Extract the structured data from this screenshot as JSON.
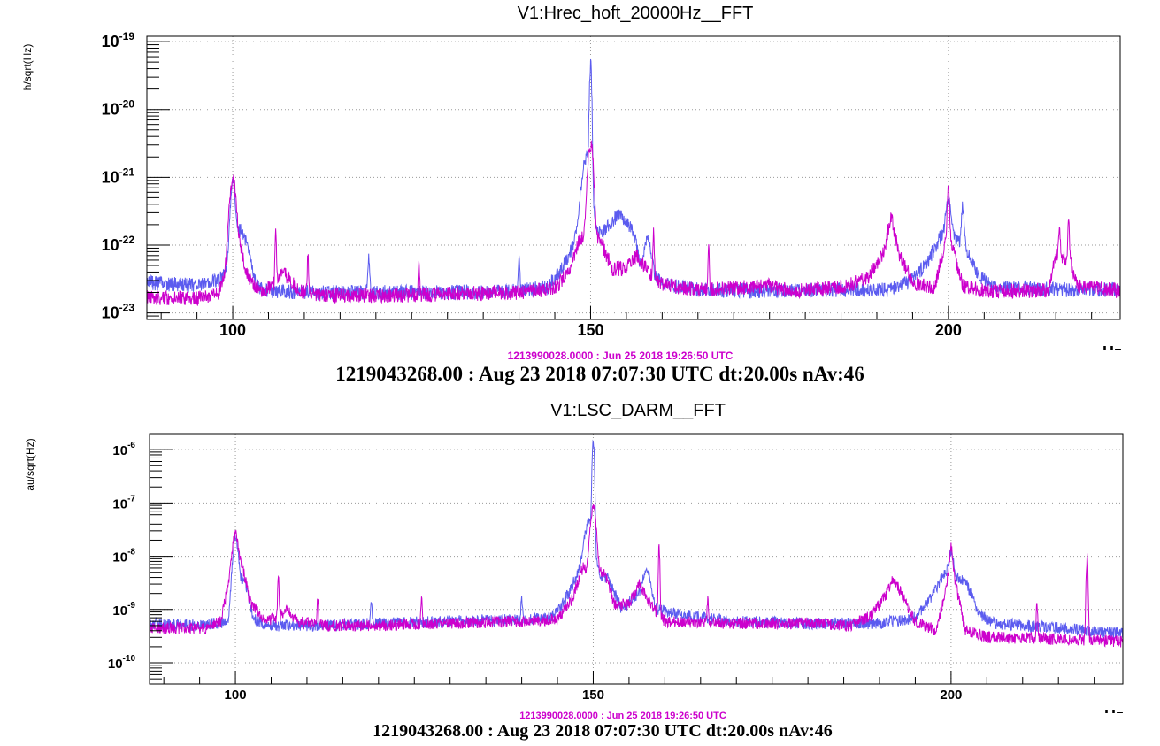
{
  "colors": {
    "reference_trace": "#cc00cc",
    "current_trace": "#5b5bef",
    "frame": "#000000",
    "grid": "#9a9a9a"
  },
  "chart_data": [
    {
      "type": "line",
      "title": "V1:Hrec_hoft_20000Hz__FFT",
      "ylabel": "h/sqrt(Hz)",
      "xlabel": "Hz",
      "x_scale": "linear",
      "y_scale": "log",
      "xlim": [
        88,
        224
      ],
      "ylim": [
        8e-24,
        1.2e-19
      ],
      "x_ticks": [
        100,
        150,
        200
      ],
      "y_ticks": [
        1e-23,
        1e-22,
        1e-21,
        1e-20,
        1e-19
      ],
      "y_tick_labels": [
        {
          "base": "10",
          "exp": "-23"
        },
        {
          "base": "10",
          "exp": "-22"
        },
        {
          "base": "10",
          "exp": "-21"
        },
        {
          "base": "10",
          "exp": "-20"
        },
        {
          "base": "10",
          "exp": "-19"
        }
      ],
      "grid": true,
      "reference_label": "1213990028.0000 : Jun 25 2018 19:26:50 UTC",
      "footer": "1219043268.00 : Aug 23 2018 07:07:30 UTC dt:20.00s nAv:46",
      "series": [
        {
          "color": "#5b5bef",
          "base_points": [
            [
              88,
              2.8e-23
            ],
            [
              95,
              2.5e-23
            ],
            [
              99,
              3.2e-23
            ],
            [
              102,
              2.6e-23
            ],
            [
              105,
              2.1e-23
            ],
            [
              110,
              2e-23
            ],
            [
              120,
              2e-23
            ],
            [
              130,
              2e-23
            ],
            [
              140,
              2.1e-23
            ],
            [
              144,
              2.4e-23
            ],
            [
              146,
              4.5e-23
            ],
            [
              148,
              1.2e-22
            ],
            [
              152,
              1.6e-22
            ],
            [
              154,
              3e-22
            ],
            [
              156,
              1.5e-22
            ],
            [
              157,
              5e-23
            ],
            [
              160,
              2.8e-23
            ],
            [
              165,
              2.2e-23
            ],
            [
              175,
              2.1e-23
            ],
            [
              185,
              2.2e-23
            ],
            [
              192,
              2.2e-23
            ],
            [
              195,
              3e-23
            ],
            [
              197,
              5.5e-23
            ],
            [
              199,
              1.4e-22
            ],
            [
              202,
              1.1e-22
            ],
            [
              204,
              4e-23
            ],
            [
              206,
              2.4e-23
            ],
            [
              215,
              2.2e-23
            ],
            [
              224,
              2.2e-23
            ]
          ],
          "peaks": [
            [
              100,
              8e-22,
              0.25
            ],
            [
              101,
              1.4e-22,
              0.9
            ],
            [
              150,
              4.5e-20,
              0.12
            ],
            [
              149.4,
              1.8e-21,
              0.5
            ],
            [
              119,
              4.5e-23,
              0.1
            ],
            [
              140,
              4.2e-23,
              0.1
            ],
            [
              158,
              8e-23,
              0.4
            ],
            [
              200,
              3.5e-22,
              0.3
            ],
            [
              202,
              2.6e-22,
              0.15
            ]
          ]
        },
        {
          "color": "#cc00cc",
          "base_points": [
            [
              88,
              1.7e-23
            ],
            [
              95,
              1.6e-23
            ],
            [
              98,
              2e-23
            ],
            [
              99,
              4e-23
            ],
            [
              101,
              1e-22
            ],
            [
              102,
              3.5e-23
            ],
            [
              104,
              2e-23
            ],
            [
              106,
              2.8e-23
            ],
            [
              107,
              4.2e-23
            ],
            [
              109,
              2.2e-23
            ],
            [
              112,
              1.8e-23
            ],
            [
              120,
              1.8e-23
            ],
            [
              130,
              1.9e-23
            ],
            [
              140,
              2e-23
            ],
            [
              145,
              2.3e-23
            ],
            [
              147,
              4e-23
            ],
            [
              148.5,
              1.3e-22
            ],
            [
              151.5,
              1.1e-22
            ],
            [
              153,
              4.5e-23
            ],
            [
              155,
              4.5e-23
            ],
            [
              156.5,
              7e-23
            ],
            [
              158,
              4e-23
            ],
            [
              160,
              2.6e-23
            ],
            [
              165,
              2.2e-23
            ],
            [
              175,
              2.5e-23
            ],
            [
              178,
              2.1e-23
            ],
            [
              186,
              2.5e-23
            ],
            [
              189,
              3.5e-23
            ],
            [
              191,
              8e-23
            ],
            [
              192,
              2.8e-22
            ],
            [
              193,
              8e-23
            ],
            [
              195,
              2.8e-23
            ],
            [
              198,
              2.3e-23
            ],
            [
              200,
              1.6e-22
            ],
            [
              202,
              2.5e-23
            ],
            [
              205,
              2.1e-23
            ],
            [
              210,
              2.1e-23
            ],
            [
              214,
              2.2e-23
            ],
            [
              215,
              7e-23
            ],
            [
              217,
              6e-23
            ],
            [
              218,
              2.5e-23
            ],
            [
              224,
              2.1e-23
            ]
          ],
          "peaks": [
            [
              100,
              9e-22,
              0.35
            ],
            [
              150,
              3e-21,
              0.3
            ],
            [
              106,
              1.3e-22,
              0.08
            ],
            [
              110.5,
              5e-23,
              0.08
            ],
            [
              126,
              3.5e-23,
              0.08
            ],
            [
              158.8,
              1.3e-22,
              0.08
            ],
            [
              166.5,
              7e-23,
              0.08
            ],
            [
              200,
              6e-22,
              0.12
            ],
            [
              215.5,
              1e-22,
              0.1
            ],
            [
              216.8,
              2.1e-22,
              0.08
            ]
          ]
        }
      ]
    },
    {
      "type": "line",
      "title": "V1:LSC_DARM__FFT",
      "ylabel": "au/sqrt(Hz)",
      "xlabel": "Hz",
      "x_scale": "linear",
      "y_scale": "log",
      "xlim": [
        88,
        224
      ],
      "ylim": [
        4e-11,
        2e-06
      ],
      "x_ticks": [
        100,
        150,
        200
      ],
      "y_ticks": [
        1e-10,
        1e-09,
        1e-08,
        1e-07,
        1e-06
      ],
      "y_tick_labels": [
        {
          "base": "10",
          "exp": "-10"
        },
        {
          "base": "10",
          "exp": "-9"
        },
        {
          "base": "10",
          "exp": "-8"
        },
        {
          "base": "10",
          "exp": "-7"
        },
        {
          "base": "10",
          "exp": "-6"
        }
      ],
      "grid": true,
      "reference_label": "1213990028.0000 : Jun 25 2018 19:26:50 UTC",
      "footer": "1219043268.00 : Aug 23 2018 07:07:30 UTC dt:20.00s nAv:46",
      "series": [
        {
          "color": "#5b5bef",
          "base_points": [
            [
              88,
              5.5e-10
            ],
            [
              95,
              5e-10
            ],
            [
              99,
              6e-10
            ],
            [
              102,
              6.5e-10
            ],
            [
              105,
              5e-10
            ],
            [
              110,
              5e-10
            ],
            [
              120,
              5.5e-10
            ],
            [
              130,
              6e-10
            ],
            [
              140,
              6.5e-10
            ],
            [
              144,
              7e-10
            ],
            [
              146,
              1.5e-09
            ],
            [
              148,
              5e-09
            ],
            [
              152,
              4e-09
            ],
            [
              154,
              1e-09
            ],
            [
              157,
              2.5e-09
            ],
            [
              159,
              1e-09
            ],
            [
              162,
              8e-10
            ],
            [
              170,
              6e-10
            ],
            [
              180,
              5.5e-10
            ],
            [
              190,
              5.5e-10
            ],
            [
              195,
              7e-10
            ],
            [
              197,
              1.5e-09
            ],
            [
              199,
              4.5e-09
            ],
            [
              202,
              3.5e-09
            ],
            [
              204,
              8e-10
            ],
            [
              206,
              5.5e-10
            ],
            [
              215,
              4.5e-10
            ],
            [
              224,
              3.5e-10
            ]
          ],
          "peaks": [
            [
              100,
              2e-08,
              0.3
            ],
            [
              101,
              3e-09,
              0.6
            ],
            [
              150,
              1.3e-06,
              0.12
            ],
            [
              149.4,
              4e-08,
              0.5
            ],
            [
              119,
              8e-10,
              0.1
            ],
            [
              140,
              9e-10,
              0.1
            ],
            [
              157.5,
              3.5e-09,
              0.4
            ],
            [
              200,
              7e-09,
              0.3
            ]
          ]
        },
        {
          "color": "#cc00cc",
          "base_points": [
            [
              88,
              4.5e-10
            ],
            [
              96,
              4.5e-10
            ],
            [
              98,
              6e-10
            ],
            [
              99,
              3e-09
            ],
            [
              101,
              6e-09
            ],
            [
              102,
              1.5e-09
            ],
            [
              104,
              6e-10
            ],
            [
              106,
              7e-10
            ],
            [
              107,
              1e-09
            ],
            [
              109,
              6e-10
            ],
            [
              112,
              5e-10
            ],
            [
              120,
              5e-10
            ],
            [
              130,
              5.5e-10
            ],
            [
              140,
              6e-10
            ],
            [
              145,
              6.5e-10
            ],
            [
              147,
              1.5e-09
            ],
            [
              148.5,
              6e-09
            ],
            [
              151.5,
              5e-09
            ],
            [
              153,
              1.2e-09
            ],
            [
              155,
              1.3e-09
            ],
            [
              156.5,
              3e-09
            ],
            [
              158,
              1.2e-09
            ],
            [
              160,
              6e-10
            ],
            [
              170,
              5.5e-10
            ],
            [
              180,
              5.5e-10
            ],
            [
              186,
              5e-10
            ],
            [
              189,
              8e-10
            ],
            [
              191,
              2e-09
            ],
            [
              192,
              4e-09
            ],
            [
              193,
              2e-09
            ],
            [
              195,
              6e-10
            ],
            [
              198,
              4e-10
            ],
            [
              200,
              8e-09
            ],
            [
              202,
              4e-10
            ],
            [
              205,
              3e-10
            ],
            [
              215,
              2.8e-10
            ],
            [
              224,
              2.5e-10
            ]
          ],
          "peaks": [
            [
              100,
              2.2e-08,
              0.35
            ],
            [
              150,
              8e-08,
              0.3
            ],
            [
              106,
              3.5e-09,
              0.08
            ],
            [
              111.5,
              1.1e-09,
              0.08
            ],
            [
              126,
              1.1e-09,
              0.08
            ],
            [
              159.2,
              1.4e-08,
              0.08
            ],
            [
              166,
              1.1e-09,
              0.08
            ],
            [
              200,
              8.5e-09,
              0.15
            ],
            [
              212,
              1e-09,
              0.08
            ],
            [
              219,
              9e-09,
              0.1
            ]
          ]
        }
      ]
    }
  ]
}
